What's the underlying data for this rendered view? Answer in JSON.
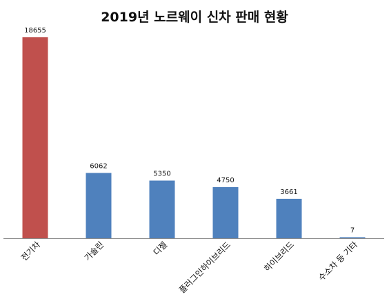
{
  "chart_data": {
    "type": "bar",
    "title": "2019년 노르웨이 신차 판매 현황",
    "categories": [
      "전기차",
      "가솔린",
      "디젤",
      "플러그인하이브리드",
      "하이브리드",
      "수소차 등 기타"
    ],
    "values": [
      18655,
      6062,
      5350,
      4750,
      3661,
      7
    ],
    "data_labels": [
      "18655",
      "6062",
      "5350",
      "4750",
      "3661",
      "7"
    ],
    "bar_colors": [
      "#c0504d",
      "#4f81bd",
      "#4f81bd",
      "#4f81bd",
      "#4f81bd",
      "#4f81bd"
    ],
    "ylim": [
      0,
      20000
    ],
    "grid": false,
    "legend": "none",
    "xlabel": "",
    "ylabel": ""
  }
}
